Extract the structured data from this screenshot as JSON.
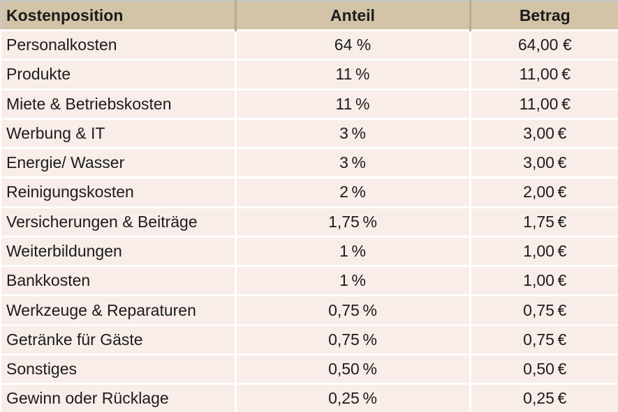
{
  "theme": {
    "header_bg": "#d3c4a8",
    "row_bg": "#f8ede8",
    "grid_color": "#ffffff",
    "header_divider": "#b4ab9c",
    "outer_border": "#c8c8c8",
    "text_color": "#1c1c1c"
  },
  "table": {
    "columns": [
      {
        "id": "position",
        "label": "Kostenposition",
        "align": "left"
      },
      {
        "id": "share",
        "label": "Anteil",
        "align": "center"
      },
      {
        "id": "amount",
        "label": "Betrag",
        "align": "center"
      }
    ],
    "rows": [
      {
        "position": "Personalkosten",
        "share": "64 %",
        "amount": "64,00 €"
      },
      {
        "position": "Produkte",
        "share": "11 %",
        "amount": "11,00 €"
      },
      {
        "position": "Miete & Betriebskosten",
        "share": "11 %",
        "amount": "11,00 €"
      },
      {
        "position": "Werbung & IT",
        "share": "3 %",
        "amount": "3,00 €"
      },
      {
        "position": "Energie/ Wasser",
        "share": "3 %",
        "amount": "3,00 €"
      },
      {
        "position": "Reinigungskosten",
        "share": "2 %",
        "amount": "2,00 €"
      },
      {
        "position": "Versicherungen & Beiträge",
        "share": "1,75 %",
        "amount": "1,75 €"
      },
      {
        "position": "Weiterbildungen",
        "share": "1 %",
        "amount": "1,00 €"
      },
      {
        "position": "Bankkosten",
        "share": "1 %",
        "amount": "1,00 €"
      },
      {
        "position": "Werkzeuge & Reparaturen",
        "share": "0,75 %",
        "amount": "0,75 €"
      },
      {
        "position": "Getränke für Gäste",
        "share": "0,75 %",
        "amount": "0,75 €"
      },
      {
        "position": "Sonstiges",
        "share": "0,50 %",
        "amount": "0,50 €"
      },
      {
        "position": "Gewinn oder Rücklage",
        "share": "0,25 %",
        "amount": "0,25 €"
      }
    ]
  }
}
